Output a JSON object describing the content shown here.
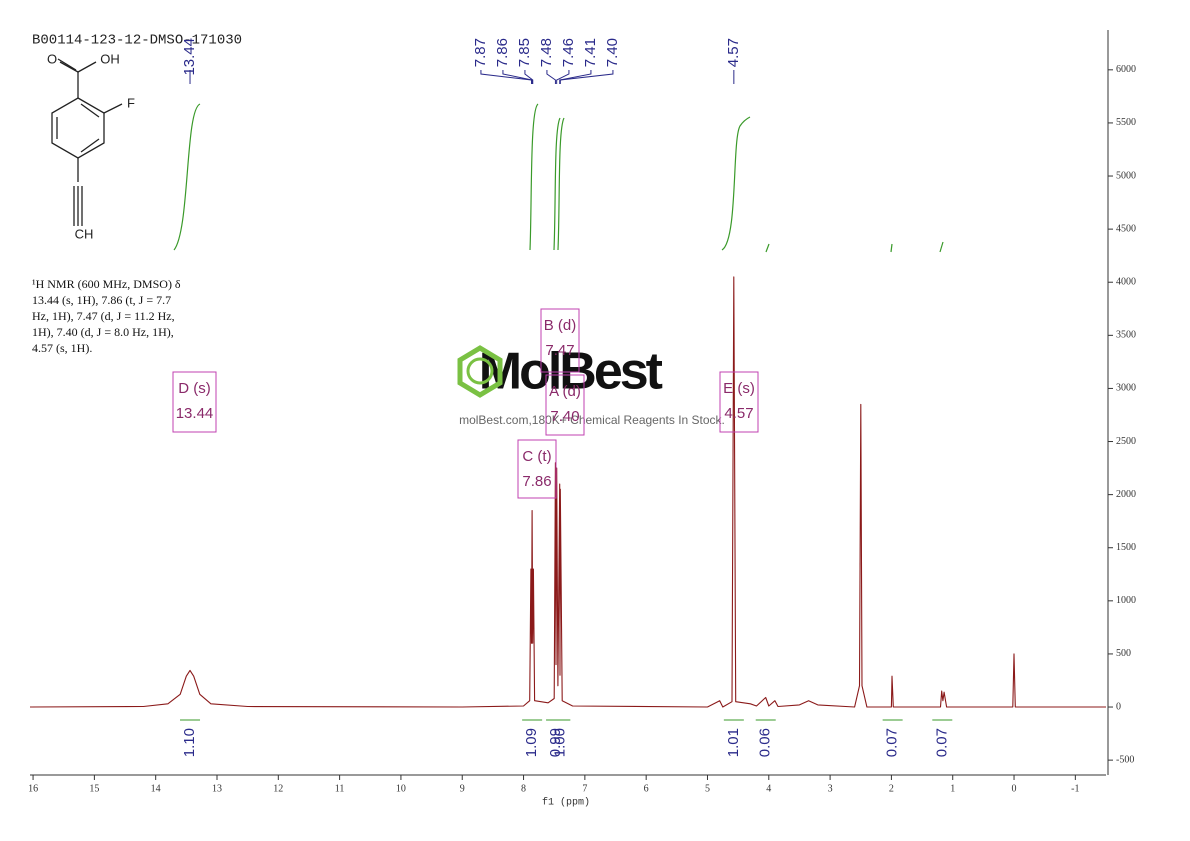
{
  "chart_data": {
    "type": "nmr",
    "title": "B00114-123-12-DMSO-171030",
    "x_label": "f1 (ppm)",
    "description": [
      "¹H NMR (600 MHz, DMSO) δ",
      "13.44 (s, 1H), 7.86 (t, J = 7.7",
      "Hz, 1H), 7.47 (d, J = 11.2 Hz,",
      "1H), 7.40 (d, J = 8.0 Hz, 1H),",
      "4.57 (s, 1H)."
    ],
    "structure_labels": [
      "O",
      "OH",
      "F",
      "CH"
    ],
    "watermark": "MolBest",
    "watermark_subtitle": "molBest.com,180K+ Chemical Reagents In Stock.",
    "color": "#8b1a1a",
    "xlim": [
      16.05,
      -1.5
    ],
    "xticks": [
      16,
      15,
      14,
      13,
      12,
      11,
      10,
      9,
      8,
      7,
      6,
      5,
      4,
      3,
      2,
      1,
      0,
      -1
    ],
    "ylim": [
      -640,
      6375
    ],
    "yticks": [
      -500,
      0,
      500,
      1000,
      1500,
      2000,
      2500,
      3000,
      3500,
      4000,
      4500,
      5000,
      5500,
      6000
    ],
    "x": [
      16.05,
      14.2,
      13.8,
      13.6,
      13.5,
      13.44,
      13.38,
      13.28,
      13.1,
      12.5,
      9,
      8.0,
      7.9,
      7.88,
      7.87,
      7.86,
      7.85,
      7.84,
      7.82,
      7.6,
      7.5,
      7.48,
      7.47,
      7.46,
      7.44,
      7.41,
      7.405,
      7.4,
      7.37,
      7.2,
      5,
      4.8,
      4.75,
      4.6,
      4.57,
      4.54,
      4.3,
      4.2,
      4.05,
      4.0,
      3.9,
      3.85,
      3.5,
      3.35,
      3.2,
      2.6,
      2.52,
      2.5,
      2.48,
      2.4,
      2.0,
      1.99,
      1.97,
      1.2,
      1.18,
      1.16,
      1.14,
      1.1,
      0.02,
      0,
      -0.02,
      -1.5
    ],
    "values": [
      0,
      5,
      30,
      120,
      290,
      345,
      290,
      120,
      30,
      5,
      0,
      10,
      60,
      1300,
      600,
      1850,
      600,
      1300,
      60,
      40,
      80,
      2300,
      400,
      2250,
      200,
      2100,
      300,
      2050,
      60,
      10,
      0,
      60,
      0,
      50,
      4050,
      50,
      30,
      10,
      90,
      10,
      60,
      5,
      20,
      60,
      20,
      0,
      200,
      2850,
      200,
      0,
      0,
      290,
      0,
      0,
      150,
      60,
      140,
      0,
      0,
      500,
      0,
      0
    ],
    "peak_labels": [
      {
        "value": 13.44,
        "label": "13.44"
      },
      {
        "value": 7.87,
        "label": "7.87"
      },
      {
        "value": 7.86,
        "label": "7.86"
      },
      {
        "value": 7.85,
        "label": "7.85"
      },
      {
        "value": 7.48,
        "label": "7.48"
      },
      {
        "value": 7.46,
        "label": "7.46"
      },
      {
        "value": 7.41,
        "label": "7.41"
      },
      {
        "value": 7.4,
        "label": "7.40"
      },
      {
        "value": 4.57,
        "label": "4.57"
      }
    ],
    "integrals": {
      "ppm": [
        13.44,
        7.86,
        7.47,
        7.4,
        4.57,
        4.05,
        1.98,
        1.17
      ],
      "values": [
        1.1,
        1.09,
        0.99,
        1.0,
        1.01,
        0.06,
        0.07,
        0.07
      ],
      "value_labels": [
        "1.10",
        "1.09",
        "0.99",
        "1.00",
        "1.01",
        "0.06",
        "0.07",
        "0.07"
      ]
    },
    "multiplets": [
      {
        "label": "D (s)",
        "shift": "13.44"
      },
      {
        "label": "B (d)",
        "shift": "7.47"
      },
      {
        "label": "A (d)",
        "shift": "7.40"
      },
      {
        "label": "C (t)",
        "shift": "7.86"
      },
      {
        "label": "E (s)",
        "shift": "4.57"
      }
    ]
  }
}
